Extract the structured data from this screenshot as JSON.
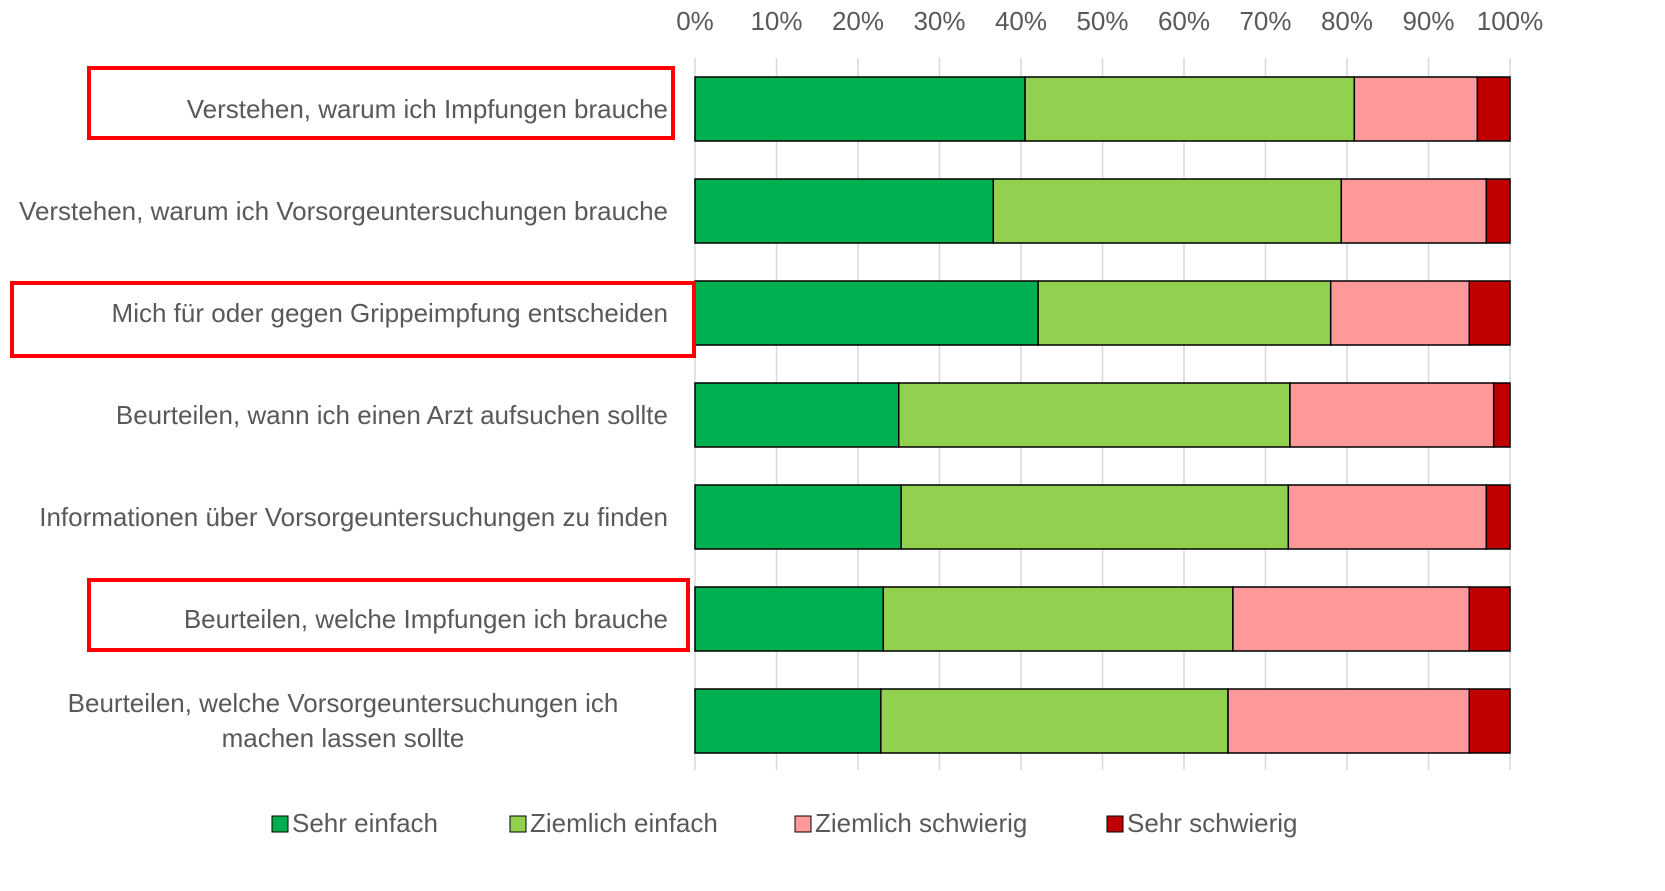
{
  "chart_data": {
    "type": "stacked_bar_horizontal",
    "categories": [
      "Verstehen, warum ich Impfungen brauche",
      "Verstehen, warum ich Vorsorgeuntersuchungen brauche",
      "Mich für oder gegen Grippeimpfung entscheiden",
      "Beurteilen, wann ich einen Arzt aufsuchen sollte",
      "Informationen über Vorsorgeuntersuchungen zu finden",
      "Beurteilen, welche Impfungen ich brauche",
      "Beurteilen, welche Vorsorgeuntersuchungen ich machen lassen sollte"
    ],
    "series": [
      {
        "name": "Sehr einfach",
        "color": "#00b050",
        "values": [
          40.5,
          36.6,
          42.1,
          25.0,
          25.3,
          23.1,
          22.8
        ]
      },
      {
        "name": "Ziemlich einfach",
        "color": "#92d050",
        "values": [
          40.4,
          42.7,
          35.9,
          48.0,
          47.5,
          42.9,
          42.6
        ]
      },
      {
        "name": "Ziemlich schwierig",
        "color": "#ff9999",
        "values": [
          15.1,
          17.8,
          17.0,
          25.0,
          24.3,
          29.0,
          29.6
        ]
      },
      {
        "name": "Sehr schwierig",
        "color": "#c00000",
        "values": [
          4.0,
          2.9,
          5.0,
          2.0,
          2.9,
          5.0,
          5.0
        ]
      }
    ],
    "xlim": [
      0,
      100
    ],
    "xticks": [
      {
        "value": 0,
        "label": "0%"
      },
      {
        "value": 10,
        "label": "10%"
      },
      {
        "value": 20,
        "label": "20%"
      },
      {
        "value": 30,
        "label": "30%"
      },
      {
        "value": 40,
        "label": "40%"
      },
      {
        "value": 50,
        "label": "50%"
      },
      {
        "value": 60,
        "label": "60%"
      },
      {
        "value": 70,
        "label": "70%"
      },
      {
        "value": 80,
        "label": "80%"
      },
      {
        "value": 90,
        "label": "90%"
      },
      {
        "value": 100,
        "label": "100%"
      }
    ],
    "grid": true,
    "legend": "bottom"
  }
}
